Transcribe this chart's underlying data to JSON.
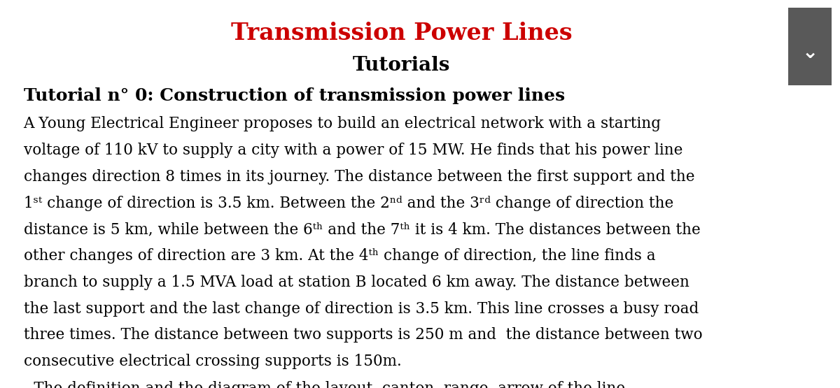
{
  "title": "Transmission Power Lines",
  "title_color": "#CC0000",
  "subtitle": "Tutorials",
  "subtitle_color": "#000000",
  "section_title": "Tutorial n° 0: Construction of transmission power lines",
  "footer_text": "- The definition and the diagram of the layout, canton, range, arrow of the line",
  "background_color": "#FFFFFF",
  "button_color": "#595959",
  "button_chevron_color": "#FFFFFF",
  "title_fontsize": 24,
  "subtitle_fontsize": 20,
  "section_fontsize": 18,
  "body_fontsize": 15.5,
  "footer_fontsize": 15.5,
  "body_lines": [
    "A Young Electrical Engineer proposes to build an electrical network with a starting",
    "voltage of 110 kV to supply a city with a power of 15 MW. He finds that his power line",
    "changes direction 8 times in its journey. The distance between the first support and the",
    "1st change of direction is 3.5 km. Between the 2nd and the 3rd change of direction the",
    "distance is 5 km, while between the 6th and the 7th it is 4 km. The distances between the",
    "other changes of direction are 3 km. At the 4th change of direction, the line finds a",
    "branch to supply a 1.5 MVA load at station B located 6 km away. The distance between",
    "the last support and the last change of direction is 3.5 km. This line crosses a busy road",
    "three times. The distance between two supports is 250 m and  the distance between two",
    "consecutive electrical crossing supports is 150m."
  ],
  "sup_map": {
    "1st": "1ˢᵗ",
    "2nd": "2ⁿᵈ",
    "3rd": "3ʳᵈ",
    "4th": "4ᵗʰ",
    "6th": "6ᵗʰ",
    "7th": "7ᵗʰ"
  }
}
